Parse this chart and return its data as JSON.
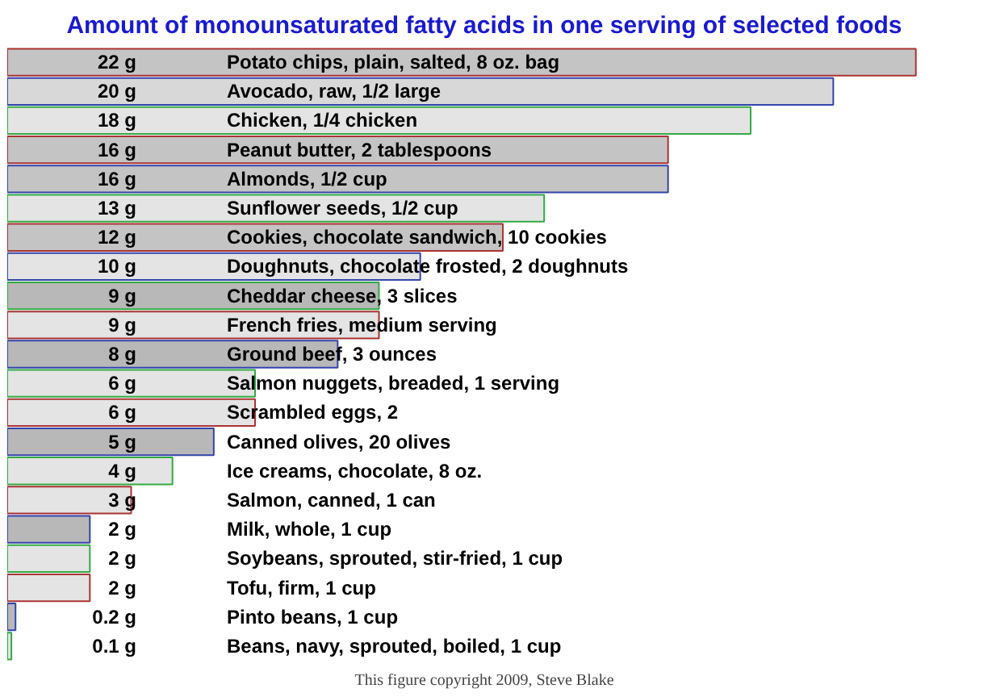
{
  "chart_data": {
    "type": "bar",
    "orientation": "horizontal",
    "title": "Amount of monounsaturated fatty acids in one serving of selected foods",
    "categories": [
      "Potato chips, plain, salted, 8 oz. bag",
      "Avocado, raw, 1/2 large",
      "Chicken, 1/4 chicken",
      "Peanut butter, 2 tablespoons",
      "Almonds, 1/2 cup",
      "Sunflower seeds, 1/2 cup",
      "Cookies, chocolate sandwich, 10 cookies",
      "Doughnuts, chocolate frosted, 2 doughnuts",
      "Cheddar cheese, 3 slices",
      "French fries, medium serving",
      "Ground beef, 3 ounces",
      "Salmon nuggets, breaded, 1 serving",
      "Scrambled eggs, 2",
      "Canned olives, 20 olives",
      "Ice creams, chocolate, 8 oz.",
      "Salmon, canned, 1 can",
      "Milk, whole, 1 cup",
      "Soybeans, sprouted, stir-fried, 1 cup",
      "Tofu, firm, 1 cup",
      "Pinto beans, 1 cup",
      "Beans, navy, sprouted, boiled, 1 cup"
    ],
    "values": [
      22,
      20,
      18,
      16,
      16,
      13,
      12,
      10,
      9,
      9,
      8,
      6,
      6,
      5,
      4,
      3,
      2,
      2,
      2,
      0.2,
      0.1
    ],
    "value_labels": [
      "22 g",
      "20 g",
      "18 g",
      "16 g",
      "16 g",
      "13 g",
      "12 g",
      "10 g",
      "9 g",
      "9 g",
      "8 g",
      "6 g",
      "6 g",
      "5 g",
      "4 g",
      "3 g",
      "2 g",
      "2 g",
      "2 g",
      "0.2 g",
      "0.1 g"
    ],
    "colors": [
      "#c4c4c4",
      "#d8d8d8",
      "#e4e4e4",
      "#c4c4c4",
      "#c4c4c4",
      "#e4e4e4",
      "#c4c4c4",
      "#e4e4e4",
      "#b8b8b8",
      "#e4e4e4",
      "#b8b8b8",
      "#e4e4e4",
      "#e4e4e4",
      "#b8b8b8",
      "#e4e4e4",
      "#e4e4e4",
      "#b8b8b8",
      "#e4e4e4",
      "#e4e4e4",
      "#b8b8b8",
      "#e4e4e4"
    ],
    "annotations": [
      "This figure copyright 2009, Steve Blake"
    ]
  }
}
